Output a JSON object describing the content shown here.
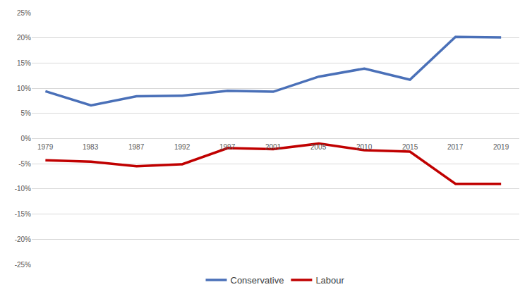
{
  "chart_data": {
    "type": "line",
    "categories": [
      "1979",
      "1983",
      "1987",
      "1992",
      "1997",
      "2001",
      "2005",
      "2010",
      "2015",
      "2017",
      "2019"
    ],
    "series": [
      {
        "name": "Conservative",
        "color": "#4a70b8",
        "values": [
          9.4,
          6.6,
          8.4,
          8.5,
          9.5,
          9.3,
          12.3,
          13.9,
          11.7,
          20.2,
          20.1
        ]
      },
      {
        "name": "Labour",
        "color": "#c00000",
        "values": [
          -4.3,
          -4.6,
          -5.5,
          -5.1,
          -1.9,
          -2.1,
          -1.0,
          -2.3,
          -2.6,
          -9.0,
          -9.0
        ]
      }
    ],
    "ylim": [
      -25,
      25
    ],
    "yticks": [
      {
        "value": -25,
        "label": "-25%"
      },
      {
        "value": -20,
        "label": "-20%"
      },
      {
        "value": -15,
        "label": "-15%"
      },
      {
        "value": -10,
        "label": "-10%"
      },
      {
        "value": -5,
        "label": "-5%"
      },
      {
        "value": 0,
        "label": "0%"
      },
      {
        "value": 5,
        "label": "5%"
      },
      {
        "value": 10,
        "label": "10%"
      },
      {
        "value": 15,
        "label": "15%"
      },
      {
        "value": 20,
        "label": "20%"
      },
      {
        "value": 25,
        "label": "25%"
      }
    ],
    "grid": true,
    "legend": "bottom"
  }
}
